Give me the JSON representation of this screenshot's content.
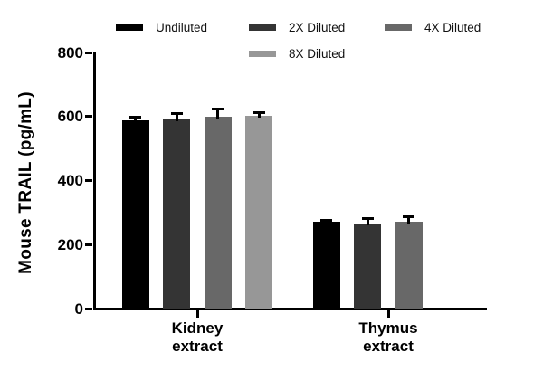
{
  "figure": {
    "background": "#ffffff",
    "axis_color": "#000000"
  },
  "legend": {
    "items": [
      {
        "label": "Undiluted",
        "color": "#000000"
      },
      {
        "label": "2X Diluted",
        "color": "#343434"
      },
      {
        "label": "4X Diluted",
        "color": "#686868"
      },
      {
        "label": "8X Diluted",
        "color": "#979797"
      }
    ]
  },
  "chart_data": {
    "type": "bar",
    "title": "",
    "xlabel": "",
    "ylabel": "Mouse TRAIL (pg/mL)",
    "ylim": [
      0,
      800
    ],
    "yticks": [
      0,
      200,
      400,
      600,
      800
    ],
    "categories": [
      {
        "lines": [
          "Kidney",
          "extract"
        ]
      },
      {
        "lines": [
          "Thymus",
          "extract"
        ]
      }
    ],
    "series": [
      {
        "name": "Undiluted",
        "color": "#000000",
        "values": [
          589,
          270
        ],
        "errors": [
          10,
          6
        ]
      },
      {
        "name": "2X Diluted",
        "color": "#343434",
        "values": [
          590,
          265
        ],
        "errors": [
          18,
          15
        ]
      },
      {
        "name": "4X Diluted",
        "color": "#686868",
        "values": [
          599,
          271
        ],
        "errors": [
          25,
          17
        ]
      },
      {
        "name": "8X Diluted",
        "color": "#979797",
        "values": [
          603,
          null
        ],
        "errors": [
          10,
          null
        ]
      }
    ],
    "error_bars": "upper",
    "grid": false,
    "legend_position": "top"
  }
}
